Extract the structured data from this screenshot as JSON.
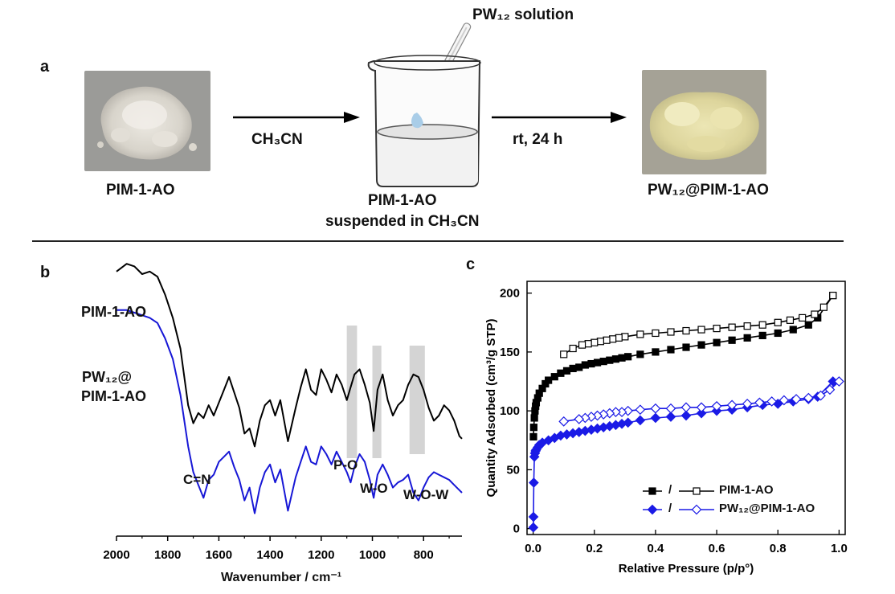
{
  "panel_a": {
    "label": "a",
    "start_material": "PIM-1-AO",
    "solvent_label": "CH₃CN",
    "beaker_label_line1": "PIM-1-AO",
    "beaker_label_line2": "suspended in CH₃CN",
    "reagent_label": "PW₁₂ solution",
    "condition_label": "rt, 24 h",
    "product": "PW₁₂@PIM-1-AO",
    "colors": {
      "start_powder": "#dcd8cf",
      "product_powder": "#e6dfa8",
      "droplet": "#a9cde8"
    }
  },
  "panel_b": {
    "label": "b",
    "xlabel": "Wavenumber / cm⁻¹",
    "series_labels": [
      "PIM-1-AO",
      "PW₁₂@",
      "PIM-1-AO"
    ],
    "band_labels": [
      "C=N",
      "P-O",
      "W-O",
      "W-O-W"
    ]
  },
  "panel_c": {
    "label": "c",
    "legend": [
      "/",
      "PIM-1-AO",
      "/",
      "PW₁₂@PIM-1-AO"
    ]
  },
  "chart_data": [
    {
      "type": "line",
      "xlabel": "Wavenumber / cm⁻¹",
      "ylabel": "",
      "xlim": [
        2000,
        650
      ],
      "x_ticks": [
        2000,
        1800,
        1600,
        1400,
        1200,
        1000,
        800
      ],
      "x_reversed": true,
      "y_axis_shown": false,
      "highlight_bands": [
        [
          1100,
          1060
        ],
        [
          1000,
          965
        ],
        [
          855,
          795
        ]
      ],
      "series": [
        {
          "name": "PIM-1-AO",
          "color": "#000000",
          "x": [
            2000,
            1960,
            1930,
            1900,
            1870,
            1840,
            1810,
            1780,
            1750,
            1720,
            1700,
            1680,
            1660,
            1640,
            1620,
            1600,
            1580,
            1560,
            1540,
            1520,
            1500,
            1480,
            1460,
            1440,
            1420,
            1400,
            1380,
            1360,
            1330,
            1300,
            1280,
            1260,
            1240,
            1220,
            1200,
            1180,
            1160,
            1140,
            1120,
            1100,
            1085,
            1070,
            1050,
            1030,
            1010,
            995,
            980,
            960,
            940,
            920,
            900,
            880,
            860,
            840,
            820,
            800,
            780,
            760,
            740,
            720,
            700,
            680,
            660,
            650
          ],
          "y": [
            0.96,
            0.99,
            0.98,
            0.95,
            0.96,
            0.94,
            0.87,
            0.78,
            0.66,
            0.44,
            0.37,
            0.41,
            0.39,
            0.44,
            0.4,
            0.45,
            0.5,
            0.55,
            0.49,
            0.43,
            0.33,
            0.35,
            0.28,
            0.38,
            0.44,
            0.46,
            0.4,
            0.46,
            0.3,
            0.43,
            0.51,
            0.58,
            0.5,
            0.48,
            0.58,
            0.54,
            0.49,
            0.56,
            0.52,
            0.46,
            0.51,
            0.56,
            0.58,
            0.52,
            0.45,
            0.34,
            0.5,
            0.56,
            0.46,
            0.4,
            0.44,
            0.46,
            0.52,
            0.56,
            0.55,
            0.5,
            0.43,
            0.38,
            0.4,
            0.44,
            0.42,
            0.38,
            0.32,
            0.31
          ]
        },
        {
          "name": "PW₁₂@PIM-1-AO",
          "color": "#1717d6",
          "x": [
            2000,
            1960,
            1930,
            1900,
            1870,
            1840,
            1810,
            1780,
            1750,
            1720,
            1700,
            1680,
            1660,
            1640,
            1620,
            1600,
            1580,
            1560,
            1540,
            1520,
            1500,
            1480,
            1460,
            1440,
            1420,
            1400,
            1380,
            1360,
            1330,
            1300,
            1280,
            1260,
            1240,
            1220,
            1200,
            1180,
            1160,
            1140,
            1120,
            1100,
            1085,
            1070,
            1050,
            1030,
            1010,
            995,
            980,
            960,
            940,
            920,
            900,
            880,
            860,
            840,
            820,
            800,
            780,
            760,
            740,
            720,
            700,
            680,
            660,
            650
          ],
          "y": [
            0.81,
            0.81,
            0.8,
            0.79,
            0.78,
            0.76,
            0.7,
            0.62,
            0.48,
            0.28,
            0.18,
            0.13,
            0.08,
            0.15,
            0.17,
            0.22,
            0.24,
            0.26,
            0.2,
            0.15,
            0.07,
            0.12,
            0.02,
            0.12,
            0.18,
            0.21,
            0.14,
            0.19,
            0.03,
            0.16,
            0.22,
            0.28,
            0.22,
            0.21,
            0.28,
            0.25,
            0.21,
            0.26,
            0.22,
            0.18,
            0.14,
            0.2,
            0.25,
            0.22,
            0.15,
            0.08,
            0.17,
            0.21,
            0.17,
            0.12,
            0.14,
            0.15,
            0.17,
            0.1,
            0.07,
            0.12,
            0.16,
            0.18,
            0.17,
            0.16,
            0.15,
            0.13,
            0.11,
            0.1
          ]
        }
      ]
    },
    {
      "type": "scatter",
      "xlabel": "Relative Pressure (p/p°)",
      "ylabel": "Quantity Adsorbed (cm³/g STP)",
      "xlim": [
        -0.02,
        1.02
      ],
      "ylim": [
        -5,
        210
      ],
      "x_ticks": [
        0.0,
        0.2,
        0.4,
        0.6,
        0.8,
        1.0
      ],
      "y_ticks": [
        0,
        50,
        100,
        150,
        200
      ],
      "legend_position": "bottom-right",
      "series": [
        {
          "name": "PIM-1-AO",
          "branch": "adsorption",
          "marker": "filled-square",
          "color": "#000000",
          "x": [
            0.001,
            0.002,
            0.004,
            0.006,
            0.008,
            0.01,
            0.015,
            0.02,
            0.03,
            0.04,
            0.05,
            0.07,
            0.09,
            0.11,
            0.13,
            0.15,
            0.17,
            0.19,
            0.21,
            0.23,
            0.25,
            0.27,
            0.29,
            0.31,
            0.35,
            0.4,
            0.45,
            0.5,
            0.55,
            0.6,
            0.65,
            0.7,
            0.75,
            0.8,
            0.85,
            0.9,
            0.93,
            0.98
          ],
          "y": [
            78,
            86,
            94,
            100,
            104,
            107,
            111,
            115,
            119,
            123,
            126,
            129,
            132,
            134,
            136,
            137,
            139,
            140,
            141,
            142,
            143,
            144,
            145,
            146,
            148,
            150,
            152,
            154,
            156,
            158,
            160,
            162,
            164,
            166,
            169,
            173,
            179,
            198
          ]
        },
        {
          "name": "PIM-1-AO",
          "branch": "desorption",
          "marker": "open-square",
          "color": "#000000",
          "x": [
            0.98,
            0.95,
            0.92,
            0.88,
            0.84,
            0.8,
            0.75,
            0.7,
            0.65,
            0.6,
            0.55,
            0.5,
            0.45,
            0.4,
            0.35,
            0.3,
            0.28,
            0.26,
            0.24,
            0.22,
            0.2,
            0.18,
            0.16,
            0.13,
            0.1
          ],
          "y": [
            198,
            188,
            182,
            179,
            177,
            175,
            173,
            172,
            171,
            170,
            169,
            168,
            167,
            166,
            165,
            163,
            162,
            161,
            160,
            159,
            158,
            157,
            156,
            153,
            148
          ]
        },
        {
          "name": "PW₁₂@PIM-1-AO",
          "branch": "adsorption",
          "marker": "filled-diamond",
          "color": "#1a1ae6",
          "x": [
            0.0005,
            0.001,
            0.002,
            0.004,
            0.006,
            0.008,
            0.01,
            0.015,
            0.02,
            0.03,
            0.05,
            0.07,
            0.09,
            0.11,
            0.13,
            0.15,
            0.17,
            0.19,
            0.21,
            0.23,
            0.25,
            0.27,
            0.29,
            0.31,
            0.35,
            0.4,
            0.45,
            0.5,
            0.55,
            0.6,
            0.65,
            0.7,
            0.75,
            0.8,
            0.85,
            0.9,
            0.93,
            0.98
          ],
          "y": [
            1,
            10,
            39,
            61,
            64,
            66,
            67,
            69,
            71,
            73,
            75,
            77,
            79,
            80,
            81,
            82,
            83,
            84,
            85,
            86,
            87,
            88,
            89,
            90,
            92,
            94,
            95,
            96,
            98,
            100,
            101,
            103,
            105,
            106,
            108,
            110,
            112,
            125
          ]
        },
        {
          "name": "PW₁₂@PIM-1-AO",
          "branch": "desorption",
          "marker": "open-diamond",
          "color": "#1a1ae6",
          "x": [
            1.0,
            0.97,
            0.94,
            0.9,
            0.86,
            0.82,
            0.78,
            0.74,
            0.7,
            0.65,
            0.6,
            0.55,
            0.5,
            0.45,
            0.4,
            0.35,
            0.31,
            0.29,
            0.27,
            0.25,
            0.23,
            0.21,
            0.19,
            0.17,
            0.15,
            0.1
          ],
          "y": [
            125,
            118,
            113,
            111,
            110,
            109,
            108,
            107,
            106,
            105,
            104,
            103,
            103,
            102,
            102,
            101,
            100,
            99,
            99,
            98,
            97,
            96,
            95,
            94,
            93,
            91
          ]
        }
      ]
    }
  ]
}
